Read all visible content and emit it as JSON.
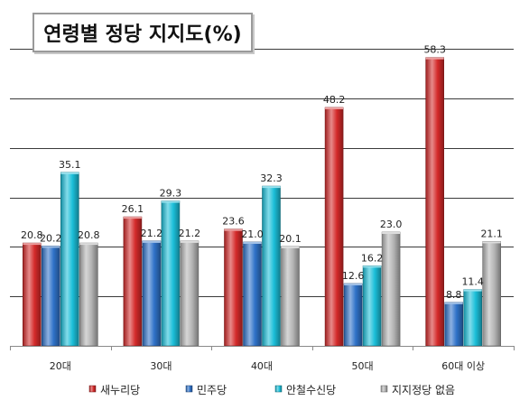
{
  "chart_data": {
    "type": "bar",
    "title": "연령별 정당 지지도(%)",
    "categories": [
      "20대",
      "30대",
      "40대",
      "50대",
      "60대 이상"
    ],
    "series": [
      {
        "name": "새누리당",
        "values": [
          20.8,
          26.1,
          23.6,
          48.2,
          58.3
        ],
        "color": "#d42a2a"
      },
      {
        "name": "민주당",
        "values": [
          20.2,
          21.2,
          21.0,
          12.6,
          8.8
        ],
        "color": "#2f72c8"
      },
      {
        "name": "안철수신당",
        "values": [
          35.1,
          29.3,
          32.3,
          16.2,
          11.4
        ],
        "color": "#1bbfd9"
      },
      {
        "name": "지지정당 없음",
        "values": [
          20.8,
          21.2,
          20.1,
          23.0,
          21.1
        ],
        "color": "#b4b4b4"
      }
    ],
    "data_labels": [
      [
        "20.8",
        "26.1",
        "23.6",
        "48.2",
        "58.3"
      ],
      [
        "20.2",
        "21.2",
        "21.0",
        "12.6",
        "8.8"
      ],
      [
        "35.1",
        "29.3",
        "32.3",
        "16.2",
        "11.4"
      ],
      [
        "20.8",
        "21.2",
        "20.1",
        "23.0",
        "21.1"
      ]
    ],
    "ylim": [
      0,
      65
    ],
    "grid": true,
    "legend": "bottom"
  }
}
